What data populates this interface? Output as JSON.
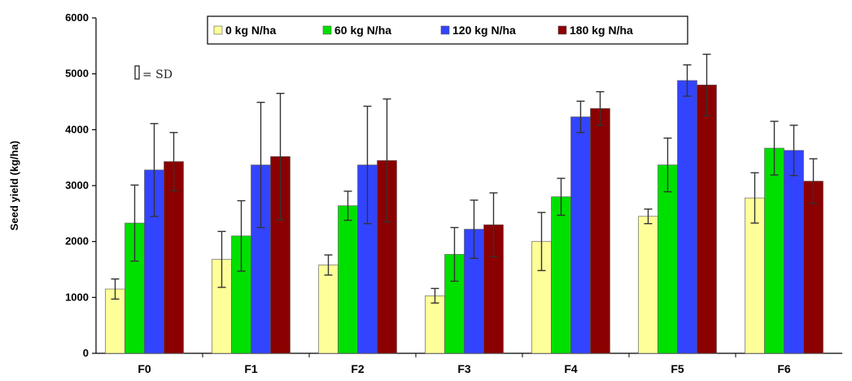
{
  "chart_data": {
    "type": "bar",
    "categories": [
      "F0",
      "F1",
      "F2",
      "F3",
      "F4",
      "F5",
      "F6"
    ],
    "series": [
      {
        "name": "0 kg N/ha",
        "color": "#ffff99",
        "values": [
          1150,
          1680,
          1580,
          1030,
          2000,
          2450,
          2780
        ],
        "sd": [
          180,
          500,
          180,
          130,
          520,
          130,
          450
        ]
      },
      {
        "name": "60 kg N/ha",
        "color": "#00e000",
        "values": [
          2330,
          2100,
          2640,
          1770,
          2800,
          3370,
          3670
        ],
        "sd": [
          680,
          630,
          260,
          480,
          330,
          480,
          480
        ]
      },
      {
        "name": "120 kg N/ha",
        "color": "#3344ff",
        "values": [
          3280,
          3370,
          3370,
          2220,
          4230,
          4880,
          3630
        ],
        "sd": [
          830,
          1120,
          1050,
          520,
          280,
          280,
          450
        ]
      },
      {
        "name": "180 kg N/ha",
        "color": "#8b0000",
        "values": [
          3430,
          3520,
          3450,
          2300,
          4380,
          4800,
          3080
        ],
        "sd": [
          520,
          1130,
          1100,
          570,
          300,
          550,
          400
        ]
      }
    ],
    "ylabel": "Seed yield (kg/ha)",
    "ylim": [
      0,
      6000
    ],
    "yticks": [
      "0",
      "1000",
      "2000",
      "3000",
      "4000",
      "5000",
      "6000"
    ],
    "annotation": "= SD",
    "legend_position": "top-center",
    "grid": false
  }
}
